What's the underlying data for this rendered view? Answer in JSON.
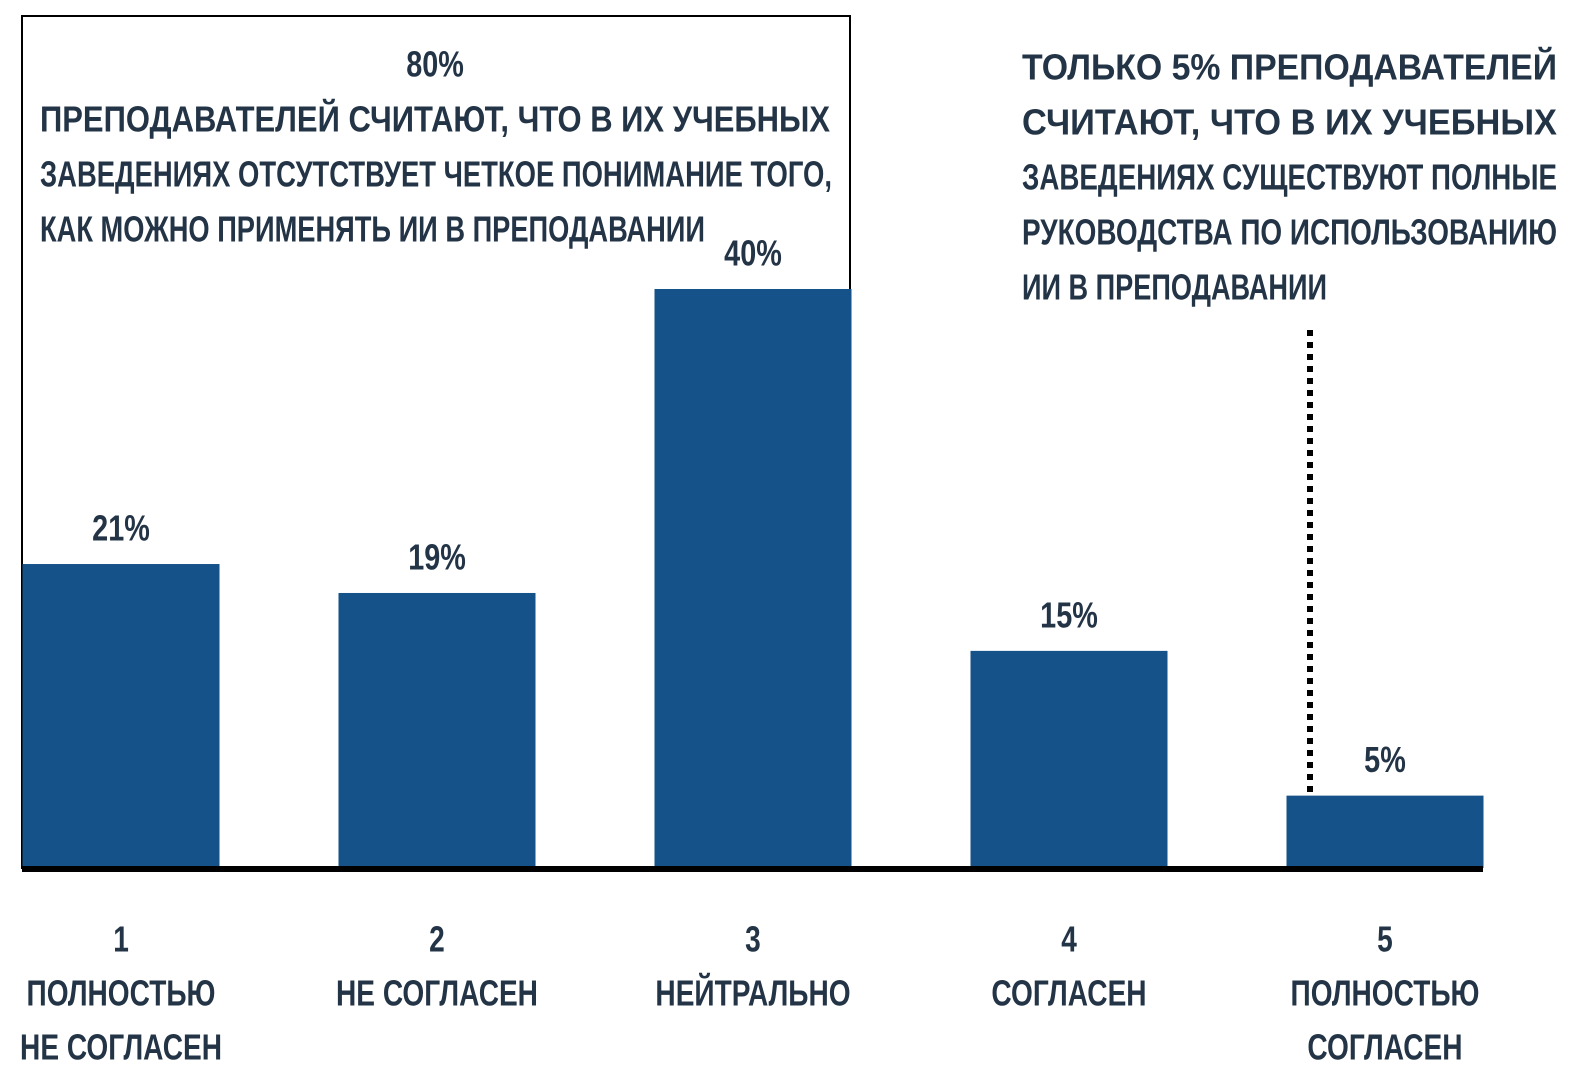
{
  "chart_data": {
    "type": "bar",
    "categories": [
      [
        "1",
        "ПОЛНОСТЬЮ",
        "НЕ СОГЛАСЕН"
      ],
      [
        "2",
        "НЕ СОГЛАСЕН"
      ],
      [
        "3",
        "НЕЙТРАЛЬНО"
      ],
      [
        "4",
        "СОГЛАСЕН"
      ],
      [
        "5",
        "ПОЛНОСТЬЮ",
        "СОГЛАСЕН"
      ]
    ],
    "values": [
      21,
      19,
      40,
      15,
      5
    ],
    "value_labels": [
      "21%",
      "19%",
      "40%",
      "15%",
      "5%"
    ],
    "color": "#16528a",
    "annotations": [
      {
        "heading": "80%",
        "lines": [
          "ПРЕПОДАВАТЕЛЕЙ СЧИТАЮТ, ЧТО В ИХ УЧЕБНЫХ",
          "ЗАВЕДЕНИЯХ ОТСУТСТВУЕТ ЧЕТКОЕ ПОНИМАНИЕ ТОГО,",
          "КАК МОЖНО ПРИМЕНЯТЬ ИИ В ПРЕПОДАВАНИИ"
        ]
      },
      {
        "lines": [
          "ТОЛЬКО 5% ПРЕПОДАВАТЕЛЕЙ",
          "СЧИТАЮТ, ЧТО В ИХ УЧЕБНЫХ",
          "ЗАВЕДЕНИЯХ СУЩЕСТВУЮТ ПОЛНЫЕ",
          "РУКОВОДСТВА ПО ИСПОЛЬЗОВАНИЮ",
          "ИИ В ПРЕПОДАВАНИИ"
        ]
      }
    ]
  }
}
